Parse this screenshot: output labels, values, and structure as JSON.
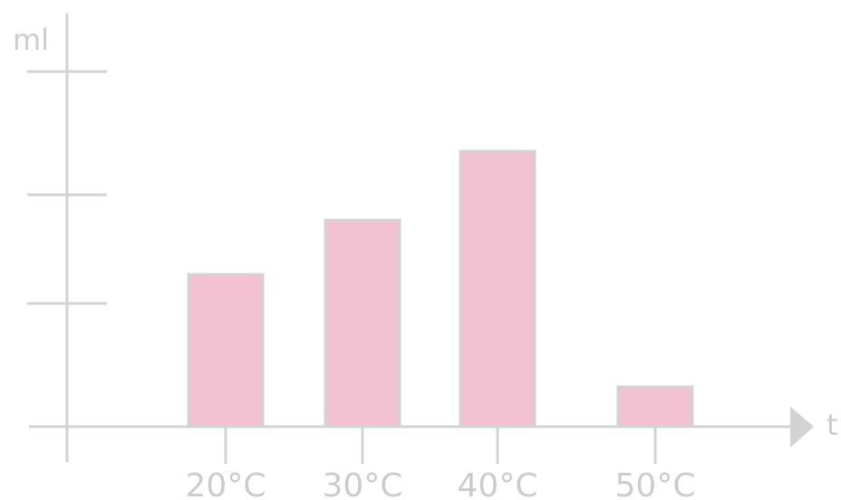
{
  "chart_data": {
    "type": "bar",
    "categories": [
      "20°C",
      "30°C",
      "40°C",
      "50°C"
    ],
    "values": [
      2.1,
      2.85,
      3.8,
      0.55
    ],
    "ylabel": "ml",
    "xlabel": "t",
    "ylim": [
      0,
      5
    ],
    "yticks": [
      1.7,
      3.2,
      4.9
    ],
    "grid": false,
    "legend": "none",
    "colors": {
      "bar_fill": "#f2c1d2",
      "bar_stroke": "#d3d3d3",
      "axis": "#d3d3d3",
      "text": "#cccccc"
    }
  }
}
